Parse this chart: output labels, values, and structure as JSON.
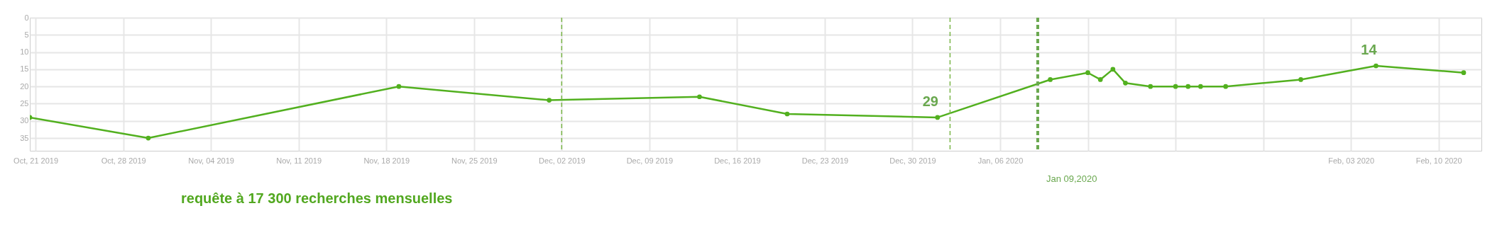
{
  "chart_data": {
    "type": "line",
    "x": [
      "2019-10-20T13:00",
      "2019-10-30",
      "2019-11-19",
      "2019-12-01",
      "2019-12-13",
      "2019-12-20",
      "2020-01-01",
      "2020-01-10",
      "2020-01-13",
      "2020-01-14",
      "2020-01-15",
      "2020-01-16",
      "2020-01-18",
      "2020-01-20",
      "2020-01-21",
      "2020-01-22",
      "2020-01-24",
      "2020-01-30",
      "2020-02-05",
      "2020-02-12"
    ],
    "series": [
      {
        "color": "#52b01f",
        "values": [
          29,
          35,
          20,
          24,
          23,
          28,
          29,
          18,
          16,
          18,
          15,
          19,
          20,
          20,
          20,
          20,
          20,
          18,
          14,
          16
        ],
        "value_labels": [
          null,
          null,
          null,
          null,
          null,
          null,
          "29",
          null,
          null,
          null,
          null,
          null,
          null,
          null,
          null,
          null,
          null,
          null,
          "14",
          null
        ]
      }
    ],
    "xlim": [
      "2019-10-20T13:00",
      "2020-02-13T10:00"
    ],
    "xticks": [
      {
        "value": "2019-10-21",
        "label": "Oct, 21 2019"
      },
      {
        "value": "2019-10-28",
        "label": "Oct, 28 2019"
      },
      {
        "value": "2019-11-04",
        "label": "Nov, 04 2019"
      },
      {
        "value": "2019-11-11",
        "label": "Nov, 11 2019"
      },
      {
        "value": "2019-11-18",
        "label": "Nov, 18 2019"
      },
      {
        "value": "2019-11-25",
        "label": "Nov, 25 2019"
      },
      {
        "value": "2019-12-02",
        "label": "Dec, 02 2019"
      },
      {
        "value": "2019-12-09",
        "label": "Dec, 09 2019"
      },
      {
        "value": "2019-12-16",
        "label": "Dec, 16 2019"
      },
      {
        "value": "2019-12-23",
        "label": "Dec, 23 2019"
      },
      {
        "value": "2019-12-30",
        "label": "Dec, 30 2019"
      },
      {
        "value": "2020-01-06",
        "label": "Jan, 06 2020"
      },
      {
        "value": "2020-01-13",
        "label": null
      },
      {
        "value": "2020-01-20",
        "label": null
      },
      {
        "value": "2020-01-27",
        "label": null
      },
      {
        "value": "2020-02-03",
        "label": "Feb, 03 2020"
      },
      {
        "value": "2020-02-10",
        "label": "Feb, 10 2020"
      }
    ],
    "ylim": [
      38.7,
      0
    ],
    "yticks": [
      0,
      5,
      10,
      15,
      20,
      25,
      30,
      35
    ],
    "grid": true,
    "marker": "circle",
    "line_style": "solid",
    "ref_lines": [
      {
        "axis": "x",
        "value": "2019-12-02",
        "color": "#7ab648",
        "line_style": "dashed"
      },
      {
        "axis": "x",
        "value": "2020-01-02",
        "color": "#7ab648",
        "line_style": "dashed"
      },
      {
        "axis": "x",
        "value": "2020-01-09",
        "label": "Jan 09,2020",
        "color": "#6aa84f",
        "line_style": "dashed"
      }
    ],
    "annotations": [
      "requête à 17 300 recherches mensuelles"
    ]
  }
}
